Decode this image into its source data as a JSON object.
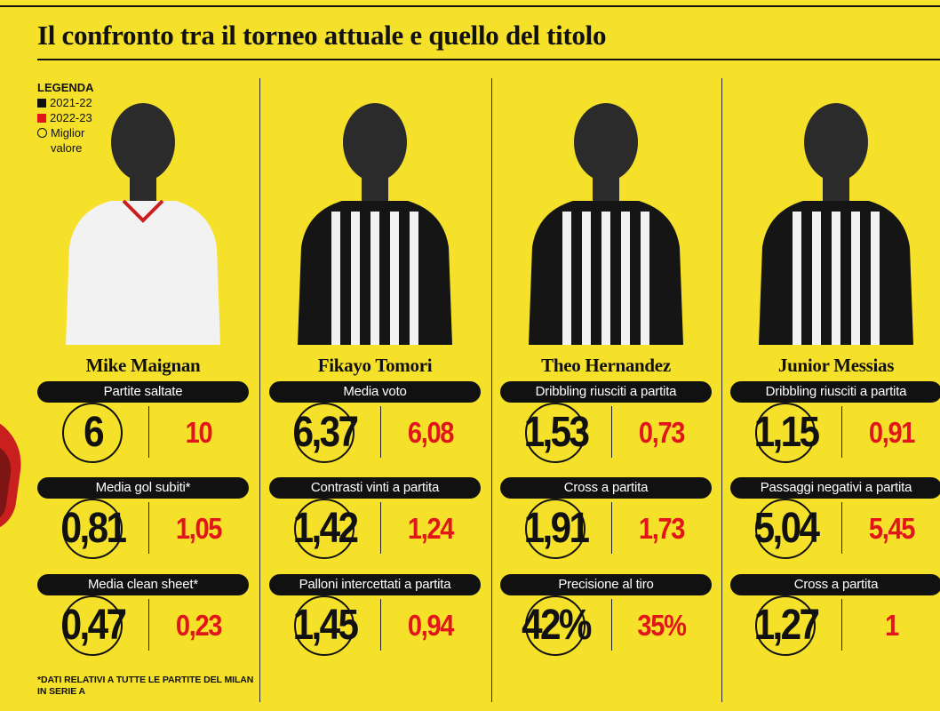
{
  "title": "Il confronto tra il torneo attuale e quello del titolo",
  "legend": {
    "title": "LEGENDA",
    "season_a": "2021-22",
    "season_b": "2022-23",
    "best_line1": "Miglior",
    "best_line2": "valore",
    "colors": {
      "season_a": "#111111",
      "season_b": "#e0161b"
    }
  },
  "players": [
    {
      "name": "Mike Maignan",
      "kit": "white-shirt",
      "stats": [
        {
          "label": "Partite saltate",
          "v2021": "6",
          "v2022": "10",
          "best": "2021-22"
        },
        {
          "label": "Media gol subiti*",
          "v2021": "0,81",
          "v2022": "1,05",
          "best": "2021-22"
        },
        {
          "label": "Media clean sheet*",
          "v2021": "0,47",
          "v2022": "0,23",
          "best": "2021-22"
        }
      ]
    },
    {
      "name": "Fikayo Tomori",
      "kit": "striped-shirt",
      "stats": [
        {
          "label": "Media voto",
          "v2021": "6,37",
          "v2022": "6,08",
          "best": "2021-22"
        },
        {
          "label": "Contrasti vinti a partita",
          "v2021": "1,42",
          "v2022": "1,24",
          "best": "2021-22"
        },
        {
          "label": "Palloni intercettati a partita",
          "v2021": "1,45",
          "v2022": "0,94",
          "best": "2021-22"
        }
      ]
    },
    {
      "name": "Theo Hernandez",
      "kit": "striped-shirt",
      "stats": [
        {
          "label": "Dribbling riusciti a partita",
          "v2021": "1,53",
          "v2022": "0,73",
          "best": "2021-22"
        },
        {
          "label": "Cross a partita",
          "v2021": "1,91",
          "v2022": "1,73",
          "best": "2021-22"
        },
        {
          "label": "Precisione al tiro",
          "v2021": "42%",
          "v2022": "35%",
          "best": "2021-22"
        }
      ]
    },
    {
      "name": "Junior Messias",
      "kit": "striped-shirt",
      "stats": [
        {
          "label": "Dribbling riusciti a partita",
          "v2021": "1,15",
          "v2022": "0,91",
          "best": "2021-22"
        },
        {
          "label": "Passaggi negativi a partita",
          "v2021": "5,04",
          "v2022": "5,45",
          "best": "2021-22"
        },
        {
          "label": "Cross a partita",
          "v2021": "1,27",
          "v2022": "1",
          "best": "2021-22"
        }
      ]
    }
  ],
  "footnote": {
    "line1": "*DATI RELATIVI A TUTTE LE PARTITE DEL MILAN",
    "line2": "IN SERIE A"
  }
}
